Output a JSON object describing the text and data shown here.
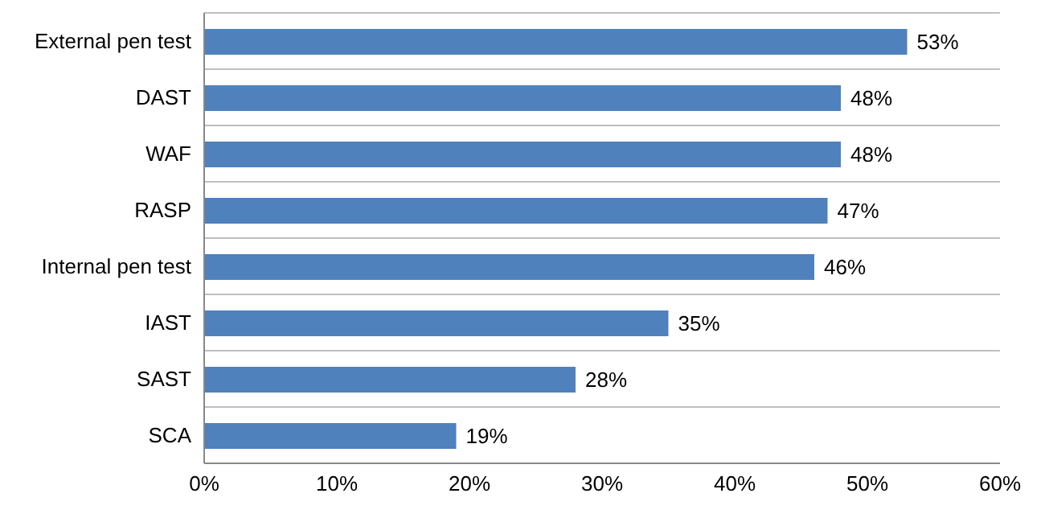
{
  "chart_data": {
    "type": "bar",
    "orientation": "horizontal",
    "categories": [
      "External pen test",
      "DAST",
      "WAF",
      "RASP",
      "Internal pen test",
      "IAST",
      "SAST",
      "SCA"
    ],
    "values": [
      53,
      48,
      48,
      47,
      46,
      35,
      28,
      19
    ],
    "value_labels": [
      "53%",
      "48%",
      "48%",
      "47%",
      "46%",
      "35%",
      "28%",
      "19%"
    ],
    "color": "#4f81bd",
    "xlim": [
      0,
      60
    ],
    "xticks": [
      {
        "value": 0,
        "label": "0%"
      },
      {
        "value": 10,
        "label": "10%"
      },
      {
        "value": 20,
        "label": "20%"
      },
      {
        "value": 30,
        "label": "30%"
      },
      {
        "value": 40,
        "label": "40%"
      },
      {
        "value": 50,
        "label": "50%"
      },
      {
        "value": 60,
        "label": "60%"
      }
    ],
    "grid": "y"
  }
}
